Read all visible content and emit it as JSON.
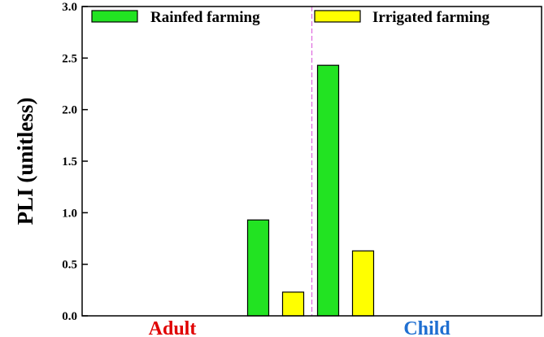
{
  "chart_data": {
    "type": "bar",
    "ylabel": "PLI (unitless)",
    "ylim": [
      0,
      3.0
    ],
    "yticks": [
      "0.0",
      "0.5",
      "1.0",
      "1.5",
      "2.0",
      "2.5",
      "3.0"
    ],
    "categories": [
      "Adult",
      "Child"
    ],
    "category_colors": [
      "#e00000",
      "#1f6fd1"
    ],
    "series": [
      {
        "name": "Rainfed farming",
        "color": "#22e322",
        "values": [
          0.93,
          2.43
        ]
      },
      {
        "name": "Irrigated farming",
        "color": "#ffff00",
        "values": [
          0.23,
          0.63
        ]
      }
    ],
    "divider": {
      "color": "#e070e0",
      "style": "dashed"
    },
    "grid": false,
    "legend": "top"
  }
}
